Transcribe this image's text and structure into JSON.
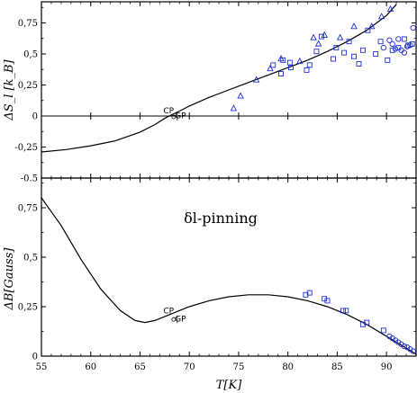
{
  "chart_data": [
    {
      "type": "scatter",
      "panel": "top",
      "ylabel": "ΔS_l [k_B]",
      "xlabel": "",
      "xlim": [
        55,
        93
      ],
      "ylim": [
        -0.5,
        0.92
      ],
      "x_ticks": [
        55,
        60,
        65,
        70,
        75,
        80,
        85,
        90
      ],
      "y_ticks": [
        -0.5,
        -0.25,
        0,
        0.25,
        0.5,
        0.75
      ],
      "y_tick_labels": [
        "-0.5",
        "-0,25",
        "0",
        "0,25",
        "0,5",
        "0,75"
      ],
      "annotations": [
        {
          "text": "CP",
          "x": 67.9,
          "y": 0.02
        },
        {
          "text": "GP",
          "x": 69.1,
          "y": -0.02
        }
      ],
      "series": [
        {
          "kind": "line",
          "x": [
            55,
            57.5,
            60,
            62.5,
            65,
            66.5,
            67.5,
            68.2,
            69,
            70,
            72,
            74,
            76,
            78,
            80,
            82,
            84,
            86,
            88,
            90,
            91
          ],
          "y": [
            -0.29,
            -0.27,
            -0.24,
            -0.2,
            -0.13,
            -0.07,
            -0.02,
            0.01,
            0.04,
            0.08,
            0.15,
            0.21,
            0.27,
            0.33,
            0.39,
            0.45,
            0.52,
            0.6,
            0.69,
            0.81,
            0.9
          ]
        },
        {
          "kind": "triangles",
          "color": "#1f2fd1",
          "x": [
            74.5,
            75.2,
            76.8,
            78.2,
            79.3,
            81.2,
            82.6,
            83.1,
            83.7,
            85.3,
            86.7,
            88.5,
            89.5,
            90.4
          ],
          "y": [
            0.06,
            0.16,
            0.29,
            0.38,
            0.46,
            0.44,
            0.63,
            0.58,
            0.65,
            0.63,
            0.72,
            0.72,
            0.8,
            0.86
          ]
        },
        {
          "kind": "squares",
          "color": "#1f2fd1",
          "x": [
            78.5,
            79.5,
            79.3,
            80.2,
            80.3,
            81.9,
            82.2,
            82.9,
            83.4,
            84.6,
            84.9,
            85.7,
            86.2,
            86.7,
            87.2,
            87.6,
            88.1,
            88.9,
            89.4,
            90.1,
            90.6,
            91.2,
            91.8,
            92.2,
            92.6
          ],
          "y": [
            0.41,
            0.45,
            0.34,
            0.43,
            0.39,
            0.37,
            0.41,
            0.52,
            0.64,
            0.46,
            0.55,
            0.51,
            0.6,
            0.48,
            0.42,
            0.53,
            0.69,
            0.5,
            0.6,
            0.45,
            0.53,
            0.55,
            0.62,
            0.57,
            0.58
          ]
        },
        {
          "kind": "circles",
          "color": "#1f2fd1",
          "x": [
            89.7,
            90.3,
            90.6,
            90.9,
            91.2,
            91.5,
            91.8,
            92.1,
            92.4,
            92.7
          ],
          "y": [
            0.55,
            0.61,
            0.58,
            0.54,
            0.62,
            0.53,
            0.51,
            0.56,
            0.57,
            0.71
          ]
        }
      ]
    },
    {
      "type": "scatter",
      "panel": "bottom",
      "title": "δl-pinning",
      "xlabel": "T[K]",
      "ylabel": "ΔB[Gauss]",
      "xlim": [
        55,
        93
      ],
      "ylim": [
        0,
        0.9
      ],
      "x_ticks": [
        55,
        60,
        65,
        70,
        75,
        80,
        85,
        90
      ],
      "x_tick_labels": [
        "55",
        "60",
        "65",
        "70",
        "75",
        "80",
        "85",
        "90"
      ],
      "y_ticks": [
        0,
        0.25,
        0.5,
        0.75
      ],
      "y_tick_labels": [
        "0",
        "0,25",
        "0,5",
        "0,75"
      ],
      "annotations": [
        {
          "text": "CP",
          "x": 67.9,
          "y": 0.215
        },
        {
          "text": "GP",
          "x": 69.1,
          "y": 0.175
        }
      ],
      "series": [
        {
          "kind": "line",
          "x": [
            55,
            57,
            59,
            61,
            63,
            64.5,
            65.5,
            66.5,
            68,
            70,
            72,
            74,
            76,
            78,
            80,
            82,
            84,
            86,
            88,
            90,
            91,
            92,
            93
          ],
          "y": [
            0.8,
            0.66,
            0.49,
            0.34,
            0.23,
            0.18,
            0.17,
            0.18,
            0.21,
            0.25,
            0.28,
            0.3,
            0.31,
            0.31,
            0.3,
            0.28,
            0.25,
            0.21,
            0.16,
            0.1,
            0.07,
            0.04,
            0.01
          ]
        },
        {
          "kind": "squares",
          "color": "#1f2fd1",
          "x": [
            81.8,
            82.2,
            83.7,
            84.0,
            85.6,
            85.9,
            87.6,
            88.0,
            89.7
          ],
          "y": [
            0.31,
            0.32,
            0.29,
            0.28,
            0.23,
            0.23,
            0.16,
            0.17,
            0.13
          ]
        },
        {
          "kind": "circles",
          "color": "#1f2fd1",
          "x": [
            90.3,
            90.6,
            90.9,
            91.2,
            91.5,
            91.8,
            92.1,
            92.4,
            92.7
          ],
          "y": [
            0.1,
            0.09,
            0.08,
            0.07,
            0.06,
            0.05,
            0.045,
            0.035,
            0.025
          ]
        }
      ]
    }
  ]
}
